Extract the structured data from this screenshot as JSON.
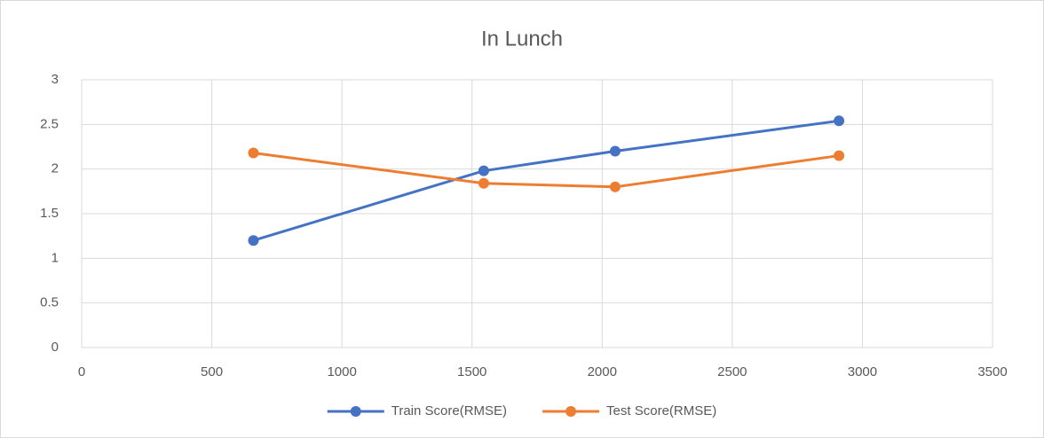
{
  "chart_data": {
    "type": "line",
    "title": "In Lunch",
    "x": [
      660,
      1545,
      2050,
      2910
    ],
    "series": [
      {
        "name": "Train Score(RMSE)",
        "color": "#4472c4",
        "values": [
          1.2,
          1.98,
          2.2,
          2.54
        ]
      },
      {
        "name": "Test Score(RMSE)",
        "color": "#ed7d31",
        "values": [
          2.18,
          1.84,
          1.8,
          2.15
        ]
      }
    ],
    "xlim": [
      0,
      3500
    ],
    "xticks": [
      0,
      500,
      1000,
      1500,
      2000,
      2500,
      3000,
      3500
    ],
    "ylim": [
      0,
      3
    ],
    "yticks": [
      0,
      0.5,
      1,
      1.5,
      2,
      2.5,
      3
    ],
    "grid": true,
    "legend": "bottom"
  }
}
